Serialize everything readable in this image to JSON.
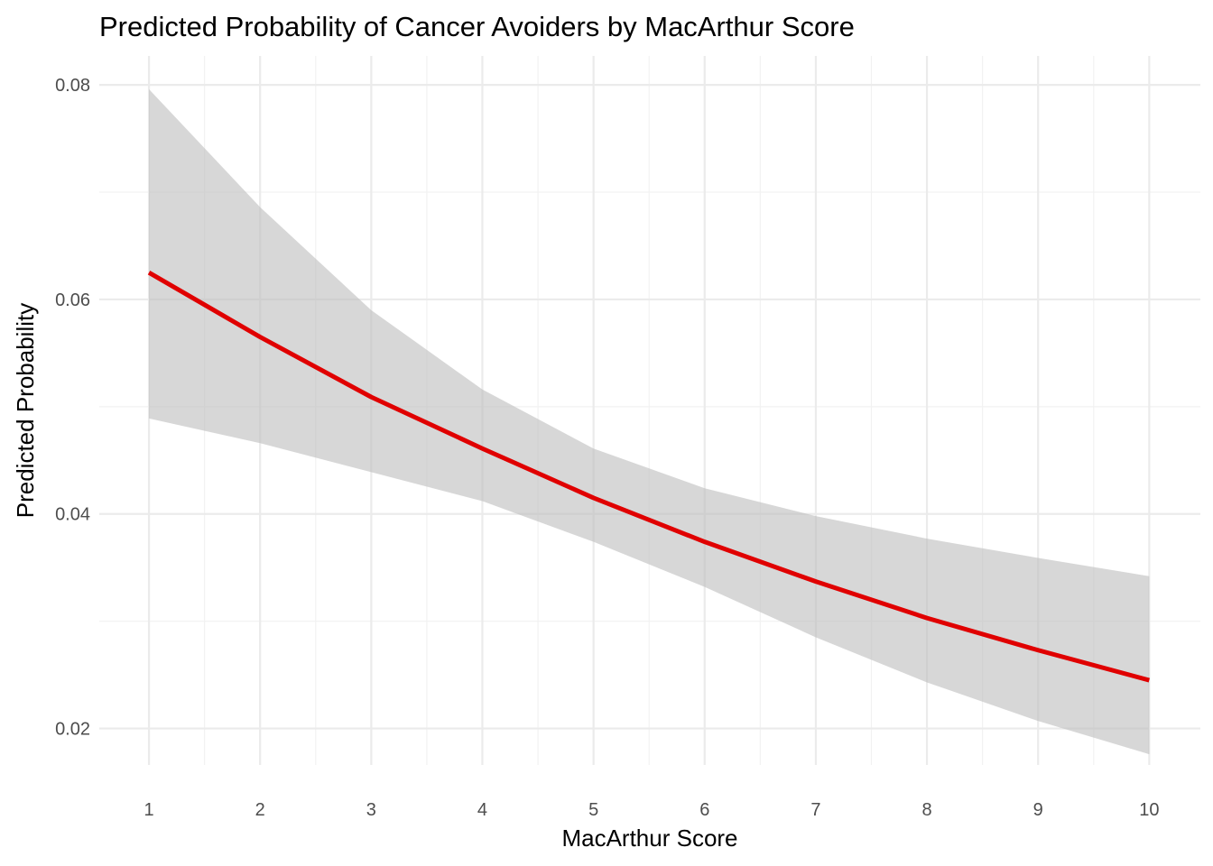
{
  "chart_data": {
    "type": "line",
    "title": "Predicted Probability of Cancer Avoiders by MacArthur Score",
    "xlabel": "MacArthur Score",
    "ylabel": "Predicted Probability",
    "x": [
      1,
      2,
      3,
      4,
      5,
      6,
      7,
      8,
      9,
      10
    ],
    "series": [
      {
        "name": "Predicted Probability",
        "color": "#e00000",
        "values": [
          0.0625,
          0.0565,
          0.0509,
          0.0461,
          0.0415,
          0.0374,
          0.0337,
          0.0303,
          0.0273,
          0.0245
        ]
      }
    ],
    "ribbon": {
      "color": "#bdbdbd",
      "upper": [
        0.0796,
        0.0686,
        0.059,
        0.0516,
        0.0461,
        0.0424,
        0.0398,
        0.0377,
        0.0359,
        0.0342
      ],
      "lower": [
        0.0489,
        0.0466,
        0.0439,
        0.0412,
        0.0374,
        0.0332,
        0.0285,
        0.0243,
        0.0207,
        0.0176
      ]
    },
    "xticks": [
      1,
      2,
      3,
      4,
      5,
      6,
      7,
      8,
      9,
      10
    ],
    "xtick_labels": [
      "1",
      "2",
      "3",
      "4",
      "5",
      "6",
      "7",
      "8",
      "9",
      "10"
    ],
    "yticks": [
      0.02,
      0.04,
      0.06,
      0.08
    ],
    "ytick_labels": [
      "0.02",
      "0.04",
      "0.06",
      "0.08"
    ],
    "xlim": [
      0.553,
      10.46
    ],
    "ylim": [
      0.0166,
      0.0827
    ],
    "grid": true
  }
}
